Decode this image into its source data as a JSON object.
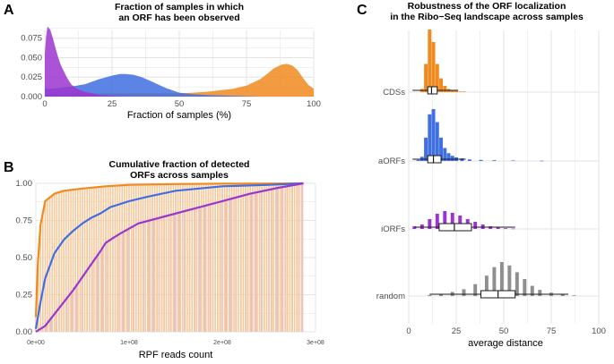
{
  "colors": {
    "CDSs": "#f08a1e",
    "aORFs": "#3f6fe0",
    "iORFs": "#9b35d0",
    "random": "#8f8f8f",
    "grid": "#e3e3e3",
    "cdf_fill_CDSs": "#f8c99a",
    "cdf_fill_aORFs": "#b9cdee",
    "cdf_fill_iORFs": "#dcbde8"
  },
  "chart_data": [
    {
      "panel": "A",
      "type": "area",
      "title": "Fraction of samples in which\nan ORF has been observed",
      "xlabel": "Fraction of samples (%)",
      "ylabel": "",
      "xlim": [
        0,
        100
      ],
      "ylim": [
        0,
        0.085
      ],
      "xticks": [
        0,
        25,
        50,
        75,
        100
      ],
      "yticks": [
        0.0,
        0.025,
        0.05,
        0.075
      ],
      "yticklabels": [
        "0.000",
        "0.025",
        "0.050",
        "0.075"
      ],
      "series": [
        {
          "name": "CDSs",
          "x": [
            0,
            5,
            10,
            20,
            30,
            40,
            50,
            55,
            60,
            65,
            70,
            75,
            80,
            83,
            85,
            88,
            90,
            92,
            94,
            96,
            98,
            100
          ],
          "y": [
            0.003,
            0.004,
            0.004,
            0.004,
            0.004,
            0.004,
            0.004,
            0.005,
            0.006,
            0.008,
            0.01,
            0.014,
            0.022,
            0.03,
            0.036,
            0.041,
            0.042,
            0.04,
            0.034,
            0.024,
            0.015,
            0.01
          ]
        },
        {
          "name": "aORFs",
          "x": [
            0,
            2,
            5,
            10,
            15,
            20,
            25,
            28,
            30,
            33,
            36,
            40,
            45,
            50,
            55,
            60,
            70,
            80,
            90,
            100
          ],
          "y": [
            0.01,
            0.01,
            0.011,
            0.013,
            0.016,
            0.022,
            0.027,
            0.029,
            0.029,
            0.028,
            0.025,
            0.019,
            0.011,
            0.005,
            0.003,
            0.002,
            0.001,
            0.0,
            0.0,
            0.0
          ]
        },
        {
          "name": "iORFs",
          "x": [
            0,
            0.5,
            1,
            2,
            3,
            4,
            5,
            6,
            7,
            8,
            9,
            10,
            12,
            15,
            18,
            20,
            25,
            30,
            100
          ],
          "y": [
            0.055,
            0.078,
            0.09,
            0.086,
            0.075,
            0.062,
            0.05,
            0.04,
            0.033,
            0.026,
            0.02,
            0.015,
            0.01,
            0.006,
            0.004,
            0.002,
            0.001,
            0.0,
            0.0
          ]
        }
      ]
    },
    {
      "panel": "B",
      "type": "line",
      "title": "Cumulative fraction of detected\nORFs across samples",
      "xlabel": "RPF reads count",
      "ylabel": "",
      "xlim": [
        0,
        300000000
      ],
      "ylim": [
        0,
        1.0
      ],
      "xticks": [
        0,
        100000000,
        200000000,
        300000000
      ],
      "xticklabels": [
        "0e+00",
        "1e+08",
        "2e+08",
        "3e+08"
      ],
      "yticks": [
        0.0,
        0.25,
        0.5,
        0.75,
        1.0
      ],
      "yticklabels": [
        "0.00",
        "0.25",
        "0.50",
        "0.75",
        "1.00"
      ],
      "series": [
        {
          "name": "CDSs",
          "x": [
            0,
            2000000,
            5000000,
            10000000,
            20000000,
            30000000,
            50000000,
            75000000,
            100000000,
            150000000,
            200000000,
            250000000,
            287000000
          ],
          "y": [
            0.1,
            0.45,
            0.72,
            0.88,
            0.93,
            0.95,
            0.965,
            0.98,
            0.99,
            0.995,
            0.998,
            0.999,
            1.0
          ]
        },
        {
          "name": "aORFs",
          "x": [
            0,
            5000000,
            10000000,
            20000000,
            30000000,
            40000000,
            50000000,
            60000000,
            70000000,
            80000000,
            100000000,
            120000000,
            150000000,
            200000000,
            250000000,
            287000000
          ],
          "y": [
            0.02,
            0.2,
            0.36,
            0.53,
            0.62,
            0.68,
            0.73,
            0.77,
            0.8,
            0.84,
            0.88,
            0.91,
            0.95,
            0.98,
            0.99,
            1.0
          ]
        },
        {
          "name": "iORFs",
          "x": [
            0,
            10000000,
            20000000,
            30000000,
            40000000,
            50000000,
            60000000,
            70000000,
            75000000,
            90000000,
            110000000,
            140000000,
            170000000,
            200000000,
            230000000,
            260000000,
            287000000
          ],
          "y": [
            0.0,
            0.04,
            0.12,
            0.2,
            0.28,
            0.37,
            0.46,
            0.55,
            0.6,
            0.66,
            0.73,
            0.78,
            0.83,
            0.88,
            0.93,
            0.97,
            1.0
          ]
        }
      ]
    },
    {
      "panel": "C",
      "type": "bar",
      "subtype": "ridge-histogram-with-boxplot",
      "title": "Robustness of the ORF localization\nin the Ribo−Seq landscape across samples",
      "xlabel": "average distance",
      "ylabel": "",
      "xlim": [
        0,
        100
      ],
      "xticks": [
        0,
        25,
        50,
        75,
        100
      ],
      "categories": [
        "CDSs",
        "aORFs",
        "iORFs",
        "random"
      ],
      "series": [
        {
          "name": "CDSs",
          "histogram_x": [
            7,
            9,
            11,
            13,
            15,
            17,
            19,
            21,
            23,
            25,
            27,
            29
          ],
          "histogram_y": [
            0.05,
            0.45,
            1.0,
            0.8,
            0.45,
            0.22,
            0.1,
            0.05,
            0.03,
            0.02,
            0.01,
            0.01
          ],
          "box": {
            "q1": 10,
            "median": 12,
            "q3": 15,
            "whisker_low": 2,
            "whisker_high": 26
          }
        },
        {
          "name": "aORFs",
          "histogram_x": [
            5,
            7,
            9,
            11,
            13,
            15,
            17,
            19,
            21,
            23,
            25,
            28,
            32,
            38,
            45,
            55,
            70
          ],
          "histogram_y": [
            0.02,
            0.08,
            0.45,
            0.9,
            1.0,
            0.75,
            0.45,
            0.25,
            0.15,
            0.1,
            0.07,
            0.05,
            0.03,
            0.02,
            0.015,
            0.01,
            0.005
          ],
          "box": {
            "q1": 10,
            "median": 13,
            "q3": 17,
            "whisker_low": 2,
            "whisker_high": 30
          }
        },
        {
          "name": "iORFs",
          "histogram_x": [
            3,
            7,
            11,
            15,
            19,
            23,
            27,
            31,
            35,
            39,
            43,
            47,
            51,
            55
          ],
          "histogram_y": [
            0.15,
            0.25,
            0.55,
            0.85,
            1.0,
            0.9,
            0.75,
            0.55,
            0.4,
            0.25,
            0.15,
            0.08,
            0.04,
            0.02
          ],
          "box": {
            "q1": 16,
            "median": 24,
            "q3": 33,
            "whisker_low": 3,
            "whisker_high": 56
          }
        },
        {
          "name": "random",
          "histogram_x": [
            11,
            17,
            23,
            29,
            35,
            41,
            45,
            49,
            53,
            57,
            61,
            65,
            69,
            75,
            81,
            87
          ],
          "histogram_y": [
            0.03,
            0.06,
            0.12,
            0.2,
            0.35,
            0.6,
            0.85,
            1.0,
            0.9,
            0.7,
            0.5,
            0.3,
            0.18,
            0.1,
            0.05,
            0.02
          ],
          "box": {
            "q1": 38,
            "median": 47,
            "q3": 56,
            "whisker_low": 11,
            "whisker_high": 84
          }
        }
      ]
    }
  ]
}
